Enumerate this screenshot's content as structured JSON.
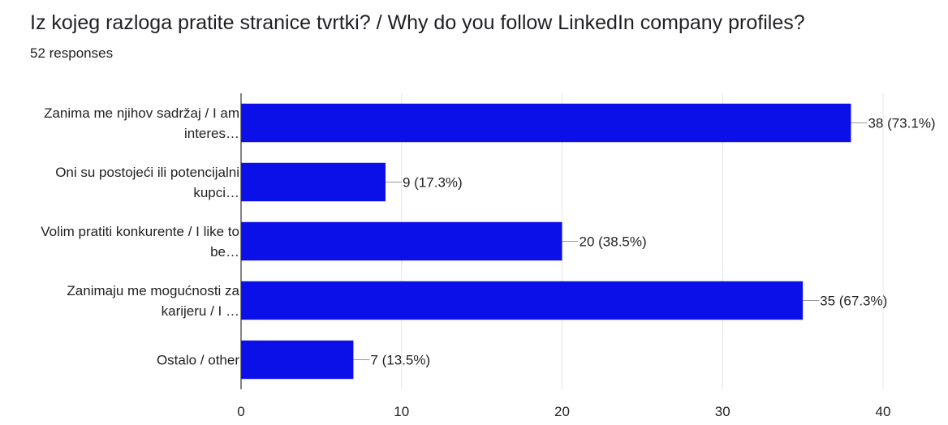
{
  "header": {
    "title": "Iz kojeg razloga pratite stranice tvrtki? / Why do you follow LinkedIn company profiles?",
    "responses": "52 responses"
  },
  "chart_data": {
    "type": "bar",
    "orientation": "horizontal",
    "categories": [
      [
        "Zanima me njihov sadržaj / I am",
        "interes…"
      ],
      [
        "Oni su postojeći ili potencijalni",
        "kupci…"
      ],
      [
        "Volim pratiti konkurente / I like to",
        "be…"
      ],
      [
        "Zanimaju me mogućnosti za",
        "karijeru / I …"
      ],
      [
        "Ostalo / other"
      ]
    ],
    "values": [
      38,
      9,
      20,
      35,
      7
    ],
    "value_labels": [
      "38 (73.1%)",
      "9 (17.3%)",
      "20 (38.5%)",
      "35 (67.3%)",
      "7 (13.5%)"
    ],
    "xlim": [
      0,
      40
    ],
    "xticks": [
      0,
      10,
      20,
      30,
      40
    ],
    "grid": true,
    "colors": {
      "bar": "#0c10e8",
      "grid": "#e6e6e6",
      "axis": "#333333",
      "leader": "#999999"
    }
  }
}
